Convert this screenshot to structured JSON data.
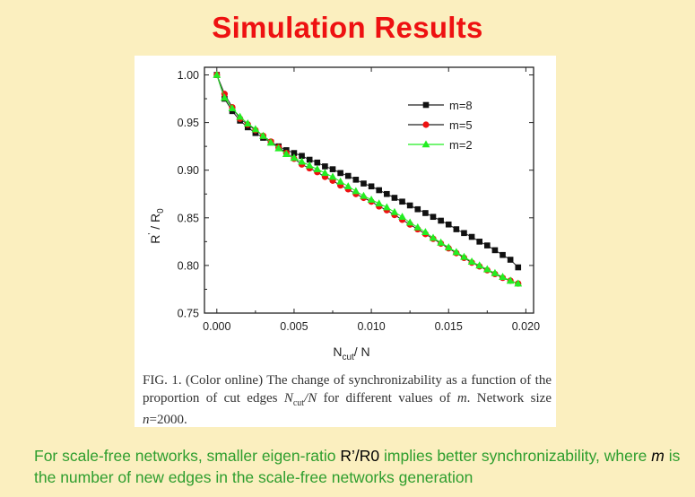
{
  "slide": {
    "title": "Simulation Results"
  },
  "chart_data": {
    "type": "line",
    "x_axis_label_main": "N",
    "x_axis_label_sub": "cut",
    "x_axis_label_tail": "/ N",
    "y_axis_label_main": "R",
    "y_axis_label_sup": "'",
    "y_axis_label_tail": " / R",
    "y_axis_label_sub": "0",
    "xlim": [
      -0.0008,
      0.0205
    ],
    "ylim": [
      0.75,
      1.008
    ],
    "x_ticks": [
      0.0,
      0.005,
      0.01,
      0.015,
      0.02
    ],
    "x_tick_labels": [
      "0.000",
      "0.005",
      "0.010",
      "0.015",
      "0.020"
    ],
    "y_ticks": [
      0.75,
      0.8,
      0.85,
      0.9,
      0.95,
      1.0
    ],
    "y_tick_labels": [
      "0.75",
      "0.80",
      "0.85",
      "0.90",
      "0.95",
      "1.00"
    ],
    "grid": false,
    "legend_position": "top-right",
    "x": [
      0.0,
      0.0005,
      0.001,
      0.0015,
      0.002,
      0.0025,
      0.003,
      0.0035,
      0.004,
      0.0045,
      0.005,
      0.0055,
      0.006,
      0.0065,
      0.007,
      0.0075,
      0.008,
      0.0085,
      0.009,
      0.0095,
      0.01,
      0.0105,
      0.011,
      0.0115,
      0.012,
      0.0125,
      0.013,
      0.0135,
      0.014,
      0.0145,
      0.015,
      0.0155,
      0.016,
      0.0165,
      0.017,
      0.0175,
      0.018,
      0.0185,
      0.019,
      0.0195
    ],
    "series": [
      {
        "name": "m=8",
        "marker": "square",
        "color": "#111111",
        "values": [
          1.0,
          0.975,
          0.962,
          0.952,
          0.945,
          0.939,
          0.934,
          0.929,
          0.925,
          0.921,
          0.918,
          0.915,
          0.911,
          0.908,
          0.904,
          0.901,
          0.897,
          0.894,
          0.89,
          0.886,
          0.883,
          0.879,
          0.875,
          0.871,
          0.867,
          0.863,
          0.859,
          0.855,
          0.851,
          0.847,
          0.843,
          0.838,
          0.834,
          0.83,
          0.825,
          0.821,
          0.816,
          0.811,
          0.806,
          0.798
        ]
      },
      {
        "name": "m=5",
        "marker": "circle",
        "color": "#ee1111",
        "values": [
          1.0,
          0.98,
          0.966,
          0.954,
          0.948,
          0.942,
          0.936,
          0.93,
          0.924,
          0.918,
          0.912,
          0.906,
          0.902,
          0.898,
          0.893,
          0.889,
          0.884,
          0.88,
          0.875,
          0.871,
          0.867,
          0.862,
          0.858,
          0.853,
          0.848,
          0.843,
          0.838,
          0.833,
          0.828,
          0.823,
          0.818,
          0.813,
          0.808,
          0.803,
          0.799,
          0.795,
          0.791,
          0.787,
          0.784,
          0.781
        ]
      },
      {
        "name": "m=2",
        "marker": "triangle",
        "color": "#22ee22",
        "values": [
          1.0,
          0.976,
          0.965,
          0.956,
          0.949,
          0.943,
          0.936,
          0.929,
          0.923,
          0.917,
          0.913,
          0.909,
          0.905,
          0.901,
          0.897,
          0.893,
          0.888,
          0.883,
          0.878,
          0.873,
          0.869,
          0.865,
          0.861,
          0.856,
          0.851,
          0.845,
          0.84,
          0.835,
          0.829,
          0.824,
          0.819,
          0.814,
          0.809,
          0.804,
          0.8,
          0.796,
          0.792,
          0.788,
          0.784,
          0.781
        ]
      }
    ]
  },
  "caption": {
    "prefix": "FIG. 1. (Color online) The change of synchronizability as a function of the proportion of cut edges ",
    "var_main": "N",
    "var_sub": "cut",
    "var_tail": "/N",
    "middle": " for different values of ",
    "var_m": "m",
    "suffix": ". Network size ",
    "var_n": "n",
    "size_value": "=2000."
  },
  "footnote": {
    "part1": "For scale-free networks, smaller eigen-ratio ",
    "ratio": "R’/R0",
    "part2": " implies better synchronizability, where ",
    "var_m": "m",
    "part3": " is the number of new edges in the scale-free networks generation"
  }
}
